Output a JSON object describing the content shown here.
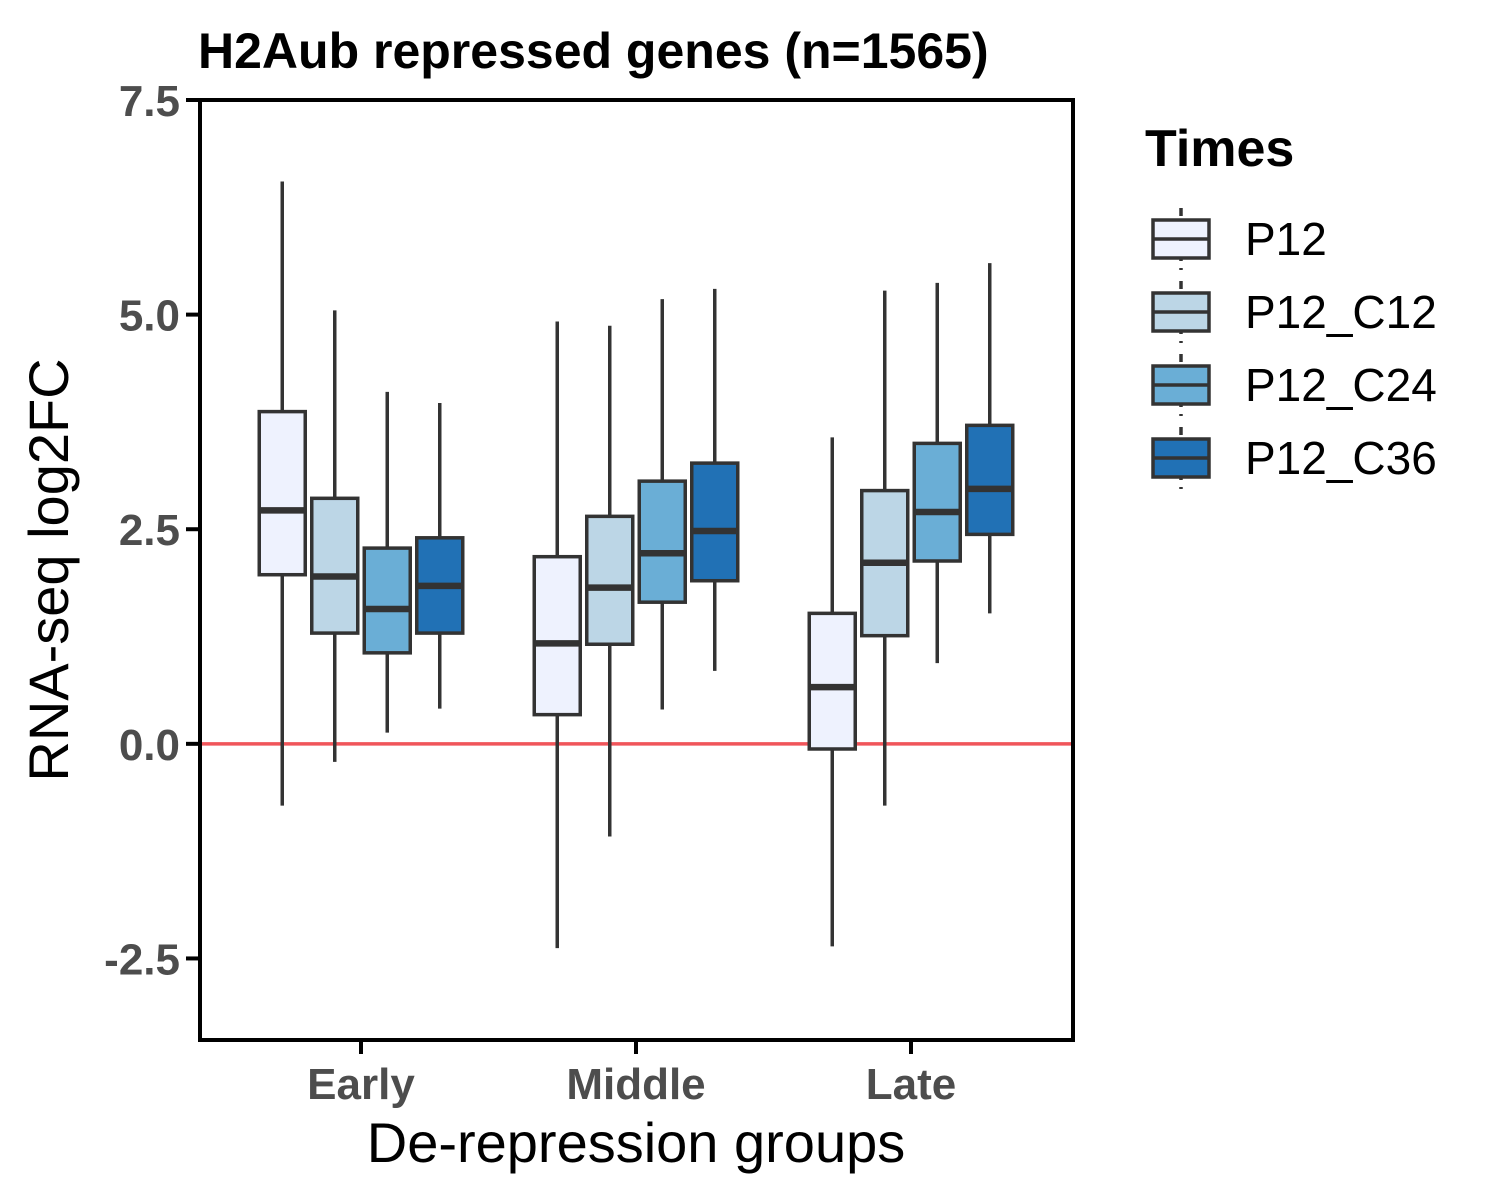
{
  "chart_data": {
    "type": "boxplot",
    "title": "H2Aub repressed genes (n=1565)",
    "xlabel": "De-repression groups",
    "ylabel": "RNA-seq log2FC",
    "ylim": [
      -3.45,
      7.5
    ],
    "yticks": [
      -2.5,
      0.0,
      2.5,
      5.0,
      7.5
    ],
    "ytick_labels": [
      "-2.5",
      "0.0",
      "2.5",
      "5.0",
      "7.5"
    ],
    "categories": [
      "Early",
      "Middle",
      "Late"
    ],
    "reference_line": {
      "y": 0,
      "color": "#f0555a"
    },
    "legend": {
      "title": "Times",
      "position": "right"
    },
    "series": [
      {
        "name": "P12",
        "color": "#eef2fe",
        "boxes": [
          {
            "whisker_low": -0.72,
            "q1": 1.97,
            "median": 2.72,
            "q3": 3.87,
            "whisker_high": 6.55
          },
          {
            "whisker_low": -2.38,
            "q1": 0.34,
            "median": 1.17,
            "q3": 2.18,
            "whisker_high": 4.92
          },
          {
            "whisker_low": -2.36,
            "q1": -0.06,
            "median": 0.66,
            "q3": 1.52,
            "whisker_high": 3.57
          }
        ]
      },
      {
        "name": "P12_C12",
        "color": "#bcd6e6",
        "boxes": [
          {
            "whisker_low": -0.21,
            "q1": 1.29,
            "median": 1.95,
            "q3": 2.86,
            "whisker_high": 5.05
          },
          {
            "whisker_low": -1.08,
            "q1": 1.16,
            "median": 1.82,
            "q3": 2.65,
            "whisker_high": 4.87
          },
          {
            "whisker_low": -0.72,
            "q1": 1.26,
            "median": 2.11,
            "q3": 2.95,
            "whisker_high": 5.28
          }
        ]
      },
      {
        "name": "P12_C24",
        "color": "#6aaed6",
        "boxes": [
          {
            "whisker_low": 0.13,
            "q1": 1.06,
            "median": 1.57,
            "q3": 2.28,
            "whisker_high": 4.1
          },
          {
            "whisker_low": 0.4,
            "q1": 1.65,
            "median": 2.22,
            "q3": 3.06,
            "whisker_high": 5.18
          },
          {
            "whisker_low": 0.94,
            "q1": 2.13,
            "median": 2.7,
            "q3": 3.5,
            "whisker_high": 5.37
          }
        ]
      },
      {
        "name": "P12_C36",
        "color": "#2171b5",
        "boxes": [
          {
            "whisker_low": 0.41,
            "q1": 1.29,
            "median": 1.84,
            "q3": 2.4,
            "whisker_high": 3.97
          },
          {
            "whisker_low": 0.85,
            "q1": 1.9,
            "median": 2.48,
            "q3": 3.27,
            "whisker_high": 5.3
          },
          {
            "whisker_low": 1.52,
            "q1": 2.44,
            "median": 2.97,
            "q3": 3.71,
            "whisker_high": 5.6
          }
        ]
      }
    ]
  }
}
